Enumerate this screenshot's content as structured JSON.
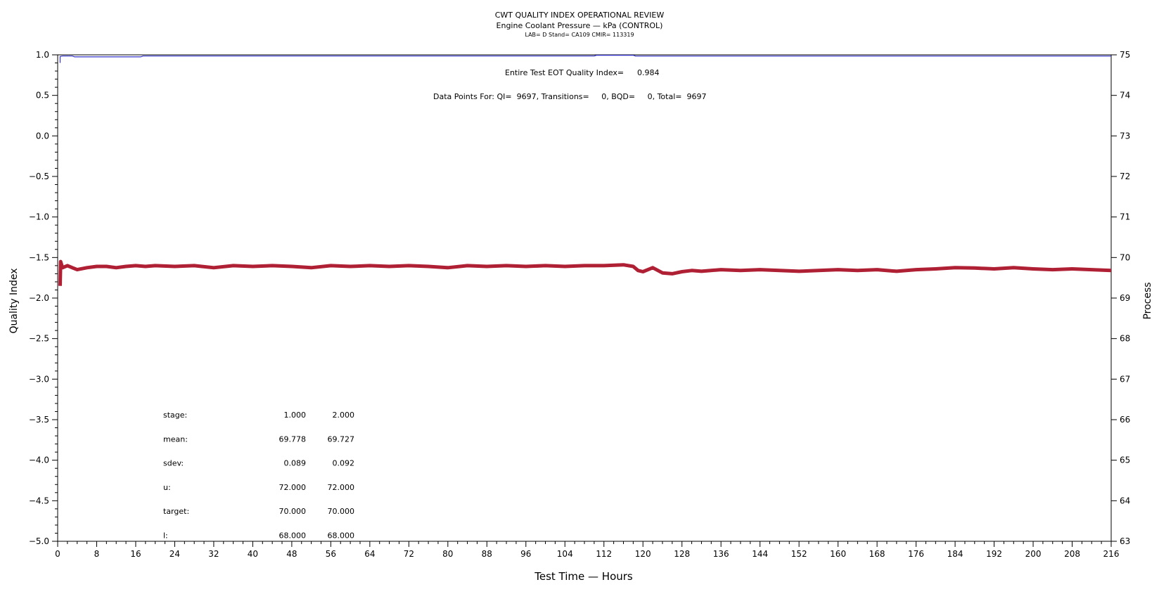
{
  "chart_data": {
    "type": "line",
    "title": "CWT QUALITY INDEX OPERATIONAL REVIEW",
    "subtitle": "Engine Coolant Pressure — kPa (CONTROL)",
    "subsubtitle": "LAB= D Stand= CA109 CMIR= 113319",
    "xlabel": "Test Time — Hours",
    "ylabel_left": "Quality Index",
    "ylabel_right": "Process",
    "xlim": [
      0,
      216
    ],
    "ylim_left": [
      -5.0,
      1.0
    ],
    "ylim_right": [
      63,
      75
    ],
    "x_ticks": [
      0,
      8,
      16,
      24,
      32,
      40,
      48,
      56,
      64,
      72,
      80,
      88,
      96,
      104,
      112,
      120,
      128,
      136,
      144,
      152,
      160,
      168,
      176,
      184,
      192,
      200,
      208,
      216
    ],
    "y_left_ticks": [
      "1.0",
      "0.5",
      "0.0",
      "−0.5",
      "−1.0",
      "−1.5",
      "−2.0",
      "−2.5",
      "−3.0",
      "−3.5",
      "−4.0",
      "−4.5",
      "−5.0"
    ],
    "y_left_tick_values": [
      1.0,
      0.5,
      0.0,
      -0.5,
      -1.0,
      -1.5,
      -2.0,
      -2.5,
      -3.0,
      -3.5,
      -4.0,
      -4.5,
      -5.0
    ],
    "y_right_ticks": [
      75,
      74,
      73,
      72,
      71,
      70,
      69,
      68,
      67,
      66,
      65,
      64,
      63
    ],
    "grid": false,
    "series": [
      {
        "color": "#3333cc",
        "axis": "left",
        "x": [
          0.5,
          0.5,
          1,
          3,
          3.5,
          17,
          17.5,
          110,
          110.5,
          118,
          118.5,
          216
        ],
        "y": [
          0.9,
          0.98,
          0.985,
          0.985,
          0.975,
          0.975,
          0.985,
          0.985,
          0.995,
          0.995,
          0.984,
          0.984
        ]
      },
      {
        "color": "#b02035",
        "axis": "right",
        "x": [
          0.5,
          0.6,
          1,
          2,
          3,
          4,
          6,
          8,
          10,
          12,
          14,
          16,
          18,
          20,
          24,
          28,
          32,
          36,
          40,
          44,
          48,
          52,
          56,
          60,
          64,
          68,
          72,
          76,
          80,
          84,
          88,
          92,
          96,
          100,
          104,
          108,
          112,
          116,
          118,
          119,
          120,
          122,
          124,
          126,
          128,
          130,
          132,
          136,
          140,
          144,
          148,
          152,
          156,
          160,
          164,
          168,
          172,
          176,
          180,
          184,
          188,
          192,
          196,
          200,
          204,
          208,
          212,
          216
        ],
        "y": [
          69.3,
          69.9,
          69.75,
          69.8,
          69.75,
          69.7,
          69.75,
          69.78,
          69.78,
          69.75,
          69.78,
          69.8,
          69.78,
          69.8,
          69.78,
          69.8,
          69.75,
          69.8,
          69.78,
          69.8,
          69.78,
          69.75,
          69.8,
          69.78,
          69.8,
          69.78,
          69.8,
          69.78,
          69.75,
          69.8,
          69.78,
          69.8,
          69.78,
          69.8,
          69.78,
          69.8,
          69.8,
          69.82,
          69.78,
          69.68,
          69.65,
          69.75,
          69.62,
          69.6,
          69.65,
          69.68,
          69.66,
          69.7,
          69.68,
          69.7,
          69.68,
          69.66,
          69.68,
          69.7,
          69.68,
          69.7,
          69.66,
          69.7,
          69.72,
          69.75,
          69.74,
          69.72,
          69.75,
          69.72,
          69.7,
          69.72,
          69.7,
          69.68
        ]
      }
    ],
    "annotations": {
      "eot_label": "Entire Test EOT Quality Index=",
      "eot_value": "0.984",
      "data_points": "Data Points For: QI=  9697, Transitions=     0, BQD=     0, Total=  9697"
    },
    "stats_table": {
      "rows": [
        {
          "label": "stage:",
          "v1": "1.000",
          "v2": "2.000"
        },
        {
          "label": "mean:",
          "v1": "69.778",
          "v2": "69.727"
        },
        {
          "label": "sdev:",
          "v1": "0.089",
          "v2": "0.092"
        },
        {
          "label": "u:",
          "v1": "72.000",
          "v2": "72.000"
        },
        {
          "label": "target:",
          "v1": "70.000",
          "v2": "70.000"
        },
        {
          "label": "l:",
          "v1": "68.000",
          "v2": "68.000"
        }
      ]
    }
  }
}
